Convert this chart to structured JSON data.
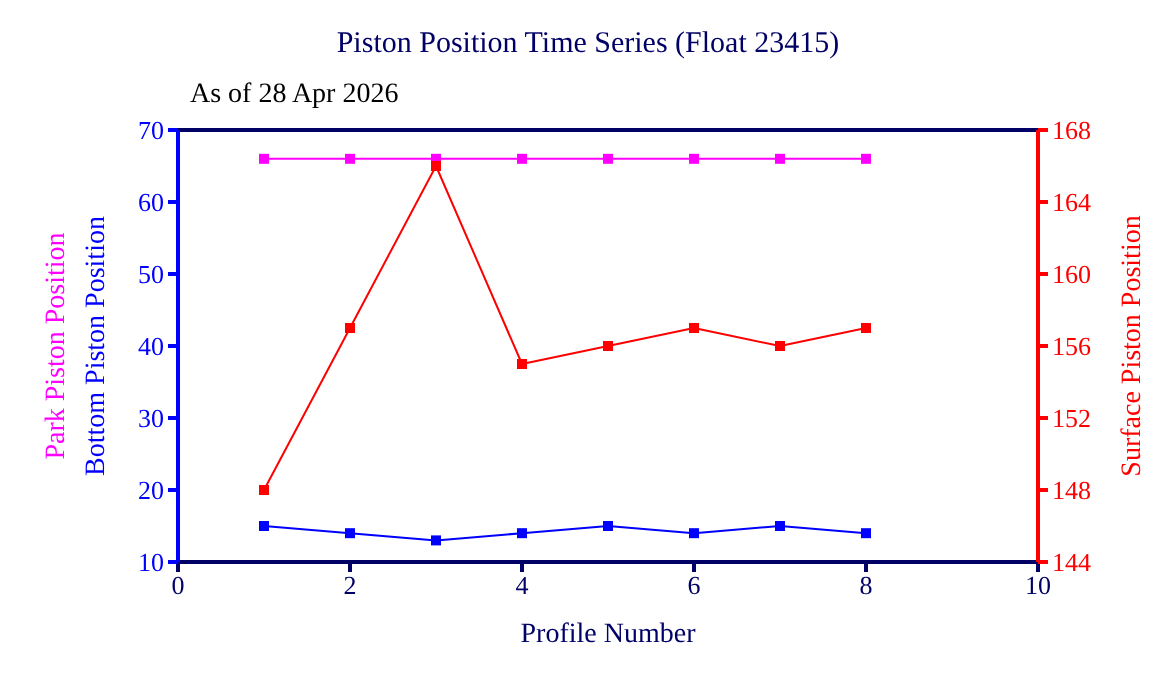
{
  "chart_data": {
    "type": "line",
    "title": "Piston Position Time Series (Float 23415)",
    "subtitle": "As of 28 Apr 2026",
    "xlabel": "Profile Number",
    "x": [
      1,
      2,
      3,
      4,
      5,
      6,
      7,
      8
    ],
    "series": [
      {
        "name": "Park Piston Position",
        "color": "#ff00ff",
        "values": [
          66,
          66,
          66,
          66,
          66,
          66,
          66,
          66
        ]
      },
      {
        "name": "Bottom Piston Position",
        "color": "#0000ff",
        "values": [
          15,
          14,
          13,
          14,
          15,
          14,
          15,
          14
        ]
      },
      {
        "name": "Surface Piston Position",
        "color": "#ff0000",
        "axis": "y2",
        "values": [
          148,
          157,
          166,
          155,
          156,
          157,
          156,
          157
        ]
      }
    ],
    "xlim": [
      0,
      10
    ],
    "xticks": [
      0,
      2,
      4,
      6,
      8,
      10
    ],
    "ylim": [
      10,
      70
    ],
    "yticks": [
      10,
      20,
      30,
      40,
      50,
      60,
      70
    ],
    "y2lim": [
      144,
      168
    ],
    "y2ticks": [
      144,
      148,
      152,
      156,
      160,
      164,
      168
    ],
    "grid": false,
    "legend": "left",
    "marker": "square",
    "line_style": "solid"
  }
}
